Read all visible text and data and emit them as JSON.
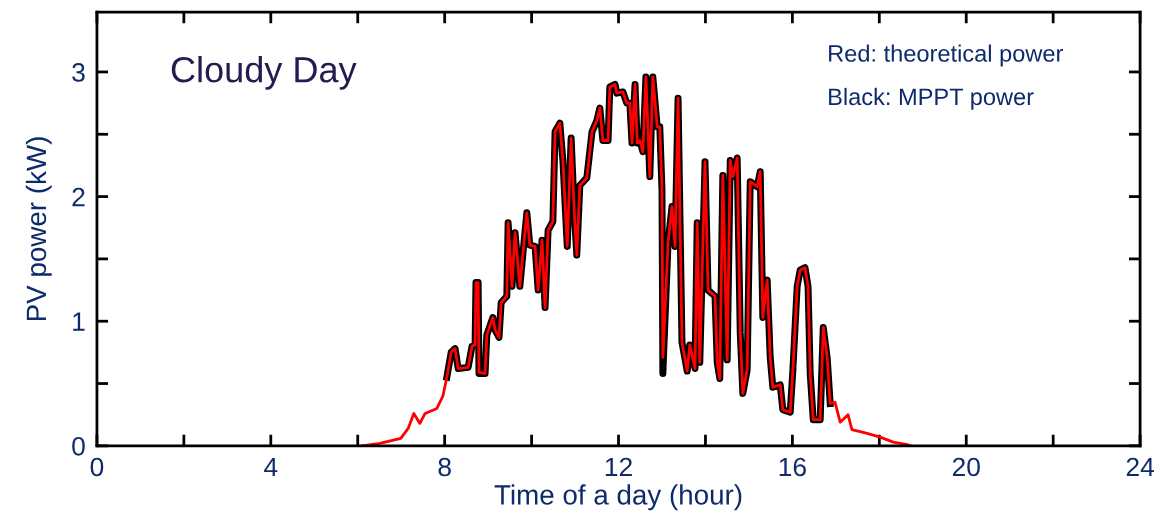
{
  "chart_data": {
    "type": "line",
    "xlabel": "Time of a day (hour)",
    "ylabel": "PV power (kW)",
    "xlim": [
      0,
      24
    ],
    "ylim": [
      0,
      3.48
    ],
    "xticks": [
      0,
      {
        "value": 2,
        "label": null
      },
      4,
      {
        "value": 6,
        "label": null
      },
      8,
      {
        "value": 10,
        "label": null
      },
      12,
      {
        "value": 14,
        "label": null
      },
      16,
      {
        "value": 18,
        "label": null
      },
      20,
      {
        "value": 22,
        "label": null
      },
      24
    ],
    "yticks": [
      0,
      {
        "value": 0.5,
        "label": null
      },
      1,
      {
        "value": 1.5,
        "label": null
      },
      2,
      {
        "value": 2.5,
        "label": null
      },
      3
    ],
    "grid": false,
    "marker": "none",
    "line_style": "solid",
    "annotations": [
      "Cloudy Day",
      "Red: theoretical power",
      "Black: MPPT power"
    ],
    "series": [
      {
        "color": "#000000",
        "x": [
          8.05,
          8.15,
          8.24,
          8.31,
          8.54,
          8.63,
          8.7,
          8.72,
          8.77,
          8.79,
          8.93,
          8.97,
          9.11,
          9.16,
          9.25,
          9.3,
          9.43,
          9.46,
          9.55,
          9.62,
          9.73,
          9.89,
          9.96,
          10.08,
          10.15,
          10.24,
          10.31,
          10.38,
          10.49,
          10.54,
          10.65,
          10.72,
          10.82,
          10.91,
          10.98,
          11.04,
          11.11,
          11.27,
          11.39,
          11.5,
          11.57,
          11.64,
          11.76,
          11.8,
          11.92,
          11.96,
          12.1,
          12.19,
          12.26,
          12.31,
          12.38,
          12.43,
          12.49,
          12.56,
          12.63,
          12.72,
          12.79,
          12.89,
          12.95,
          13.0,
          13.02,
          13.14,
          13.23,
          13.3,
          13.37,
          13.46,
          13.58,
          13.64,
          13.76,
          13.81,
          13.87,
          13.99,
          14.06,
          14.22,
          14.27,
          14.33,
          14.4,
          14.5,
          14.57,
          14.63,
          14.73,
          14.8,
          14.86,
          14.96,
          15.03,
          15.19,
          15.26,
          15.32,
          15.42,
          15.49,
          15.55,
          15.72,
          15.78,
          15.95,
          16.01,
          16.11,
          16.18,
          16.29,
          16.36,
          16.41,
          16.48,
          16.64,
          16.71,
          16.8,
          16.87
        ],
        "values": [
          0.55,
          0.75,
          0.78,
          0.62,
          0.63,
          0.8,
          0.81,
          1.31,
          1.31,
          0.58,
          0.58,
          0.89,
          1.03,
          0.93,
          0.87,
          1.15,
          1.2,
          1.79,
          1.28,
          1.71,
          1.28,
          1.87,
          1.61,
          1.6,
          1.25,
          1.65,
          1.11,
          1.73,
          1.8,
          2.52,
          2.59,
          2.29,
          1.6,
          2.47,
          1.89,
          1.53,
          2.09,
          2.15,
          2.52,
          2.61,
          2.71,
          2.45,
          2.45,
          2.88,
          2.9,
          2.83,
          2.84,
          2.75,
          2.75,
          2.43,
          2.9,
          2.43,
          2.45,
          2.36,
          2.96,
          2.16,
          2.96,
          2.56,
          2.56,
          2.05,
          0.58,
          1.63,
          1.92,
          1.6,
          2.79,
          0.83,
          0.6,
          0.81,
          0.62,
          1.79,
          0.67,
          2.28,
          1.25,
          1.2,
          0.67,
          0.54,
          2.17,
          0.69,
          2.29,
          2.16,
          2.31,
          0.91,
          0.42,
          0.61,
          2.12,
          2.08,
          2.2,
          1.03,
          1.33,
          0.71,
          0.47,
          0.49,
          0.29,
          0.27,
          0.6,
          1.28,
          1.41,
          1.43,
          1.28,
          0.58,
          0.21,
          0.21,
          0.95,
          0.71,
          0.34
        ]
      },
      {
        "color": "#ff0000",
        "x": [
          6.1,
          6.51,
          6.99,
          7.16,
          7.29,
          7.43,
          7.55,
          7.82,
          7.96,
          8.05,
          8.15,
          8.24,
          8.31,
          8.54,
          8.63,
          8.7,
          8.72,
          8.77,
          8.79,
          8.93,
          8.97,
          9.11,
          9.16,
          9.25,
          9.3,
          9.43,
          9.46,
          9.55,
          9.62,
          9.73,
          9.89,
          9.96,
          10.08,
          10.15,
          10.24,
          10.31,
          10.38,
          10.49,
          10.54,
          10.65,
          10.72,
          10.82,
          10.91,
          10.98,
          11.04,
          11.11,
          11.27,
          11.39,
          11.5,
          11.57,
          11.64,
          11.76,
          11.8,
          11.92,
          11.96,
          12.1,
          12.19,
          12.26,
          12.31,
          12.38,
          12.43,
          12.49,
          12.56,
          12.63,
          12.72,
          12.79,
          12.89,
          12.95,
          13.0,
          13.02,
          13.14,
          13.23,
          13.3,
          13.37,
          13.46,
          13.58,
          13.64,
          13.76,
          13.81,
          13.87,
          13.99,
          14.06,
          14.22,
          14.27,
          14.33,
          14.4,
          14.5,
          14.57,
          14.63,
          14.73,
          14.8,
          14.86,
          14.96,
          15.03,
          15.19,
          15.26,
          15.32,
          15.42,
          15.49,
          15.55,
          15.72,
          15.78,
          15.95,
          16.01,
          16.11,
          16.18,
          16.29,
          16.36,
          16.41,
          16.48,
          16.64,
          16.71,
          16.8,
          16.87,
          16.98,
          17.1,
          17.28,
          17.37,
          17.72,
          18.02,
          18.32,
          18.64,
          18.71
        ],
        "values": [
          0,
          0.02,
          0.06,
          0.14,
          0.26,
          0.18,
          0.26,
          0.3,
          0.4,
          0.55,
          0.75,
          0.78,
          0.62,
          0.63,
          0.8,
          0.81,
          1.31,
          1.31,
          0.59,
          0.58,
          0.89,
          1.03,
          0.93,
          0.87,
          1.15,
          1.2,
          1.79,
          1.28,
          1.71,
          1.28,
          1.87,
          1.61,
          1.6,
          1.25,
          1.65,
          1.11,
          1.73,
          1.8,
          2.52,
          2.59,
          2.29,
          1.6,
          2.47,
          1.89,
          1.53,
          2.09,
          2.15,
          2.52,
          2.61,
          2.71,
          2.45,
          2.45,
          2.88,
          2.9,
          2.83,
          2.84,
          2.75,
          2.75,
          2.43,
          2.9,
          2.43,
          2.45,
          2.36,
          2.96,
          2.16,
          2.96,
          2.56,
          2.56,
          2.05,
          0.71,
          1.63,
          1.92,
          1.6,
          2.79,
          0.83,
          0.6,
          0.81,
          0.62,
          1.79,
          0.67,
          2.28,
          1.25,
          1.2,
          0.67,
          0.54,
          2.17,
          0.69,
          2.29,
          2.16,
          2.31,
          0.91,
          0.42,
          0.61,
          2.12,
          2.08,
          2.2,
          1.03,
          1.33,
          0.71,
          0.47,
          0.49,
          0.29,
          0.27,
          0.6,
          1.28,
          1.41,
          1.43,
          1.28,
          0.58,
          0.21,
          0.21,
          0.95,
          0.71,
          0.34,
          0.35,
          0.19,
          0.25,
          0.13,
          0.1,
          0.07,
          0.03,
          0.01,
          0
        ]
      }
    ]
  }
}
